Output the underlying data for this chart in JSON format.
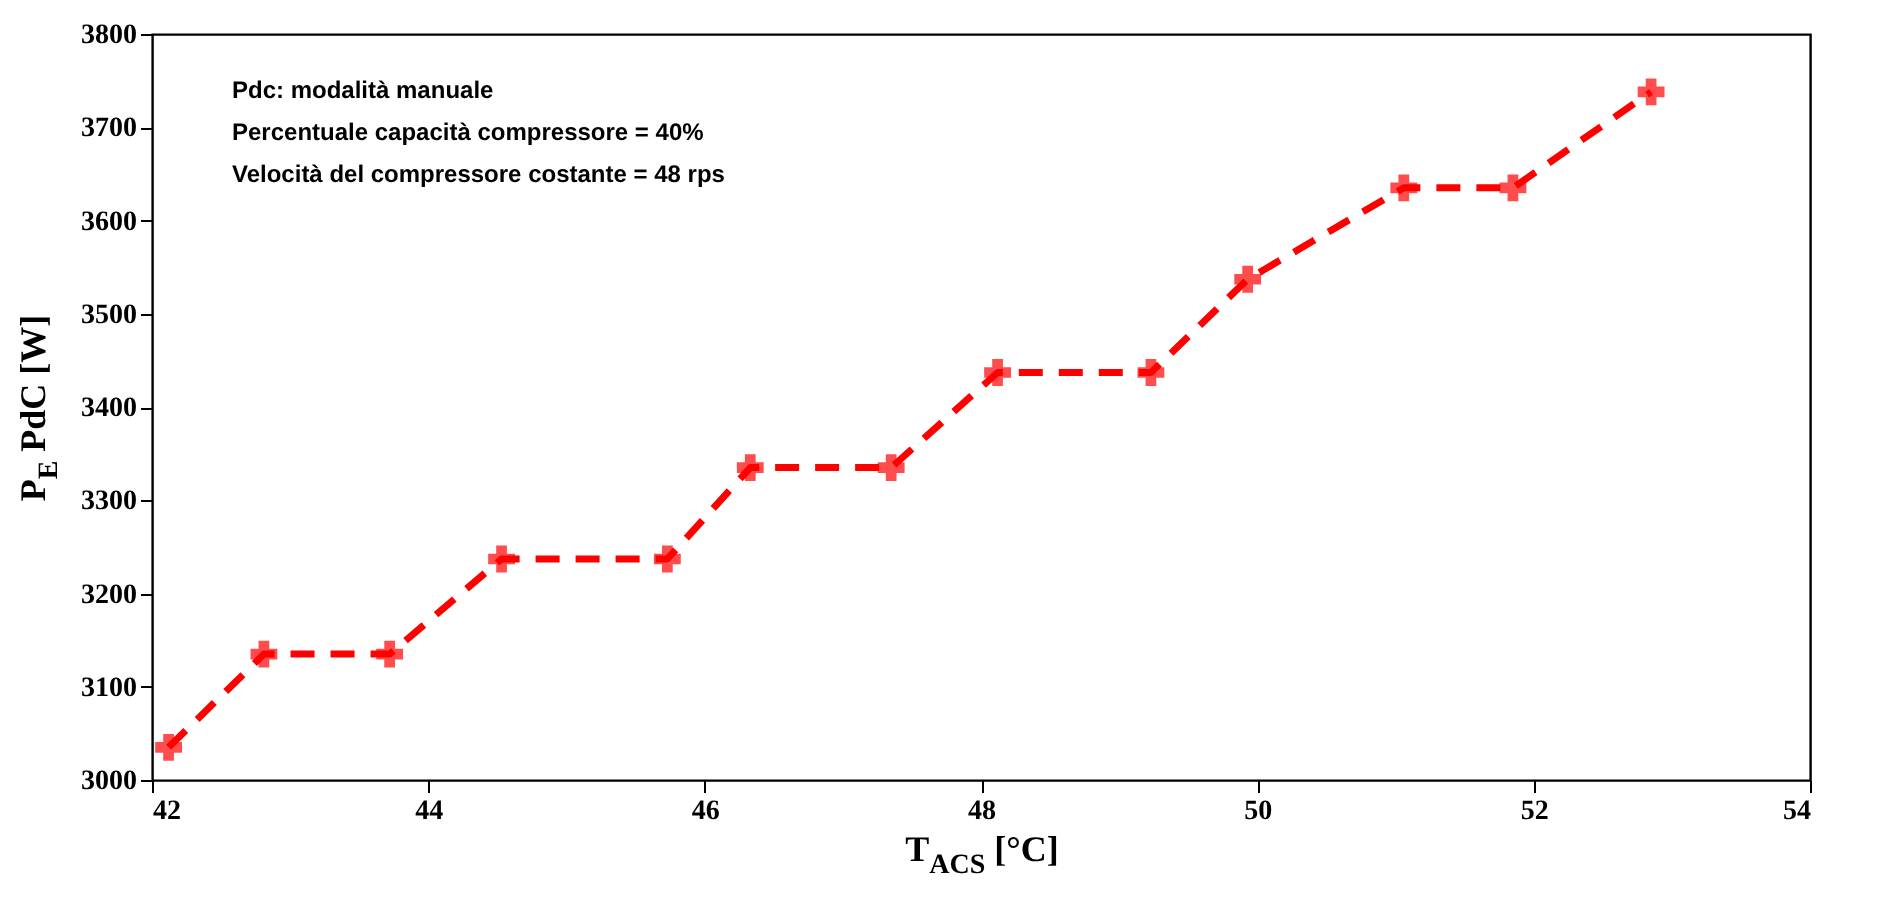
{
  "chart_data": {
    "type": "line",
    "xlabel": "T$_{ACS}$ [°C]",
    "ylabel": "P$_{E}$ PdC [W]",
    "annotations": [
      "Pdc: modalità manuale",
      "Percentuale capacità compressore = 40%",
      "Velocità del compressore costante = 48 rps"
    ],
    "x": [
      42.12,
      42.81,
      43.72,
      44.53,
      45.73,
      46.33,
      47.35,
      48.12,
      49.23,
      49.93,
      51.06,
      51.85,
      52.85
    ],
    "series": [
      {
        "color": "#ff0000",
        "values": [
          3035,
          3135,
          3135,
          3237,
          3237,
          3335,
          3335,
          3437,
          3437,
          3537,
          3635,
          3635,
          3738
        ]
      }
    ],
    "xlim": [
      42,
      54
    ],
    "xticks": [
      42,
      44,
      46,
      48,
      50,
      52,
      54
    ],
    "ylim": [
      3000,
      3800
    ],
    "yticks": [
      3000,
      3100,
      3200,
      3300,
      3400,
      3500,
      3600,
      3700,
      3800
    ],
    "grid": false,
    "marker": "cross",
    "line_style": "dashed"
  }
}
